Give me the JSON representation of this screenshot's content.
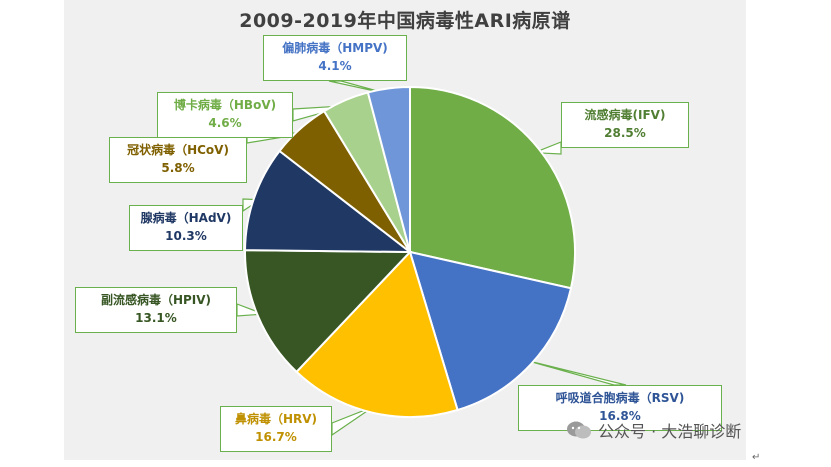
{
  "chart_data": {
    "type": "pie",
    "title": "2009-2019年中国病毒性ARI病原谱",
    "slices": [
      {
        "label": "流感病毒(IFV)",
        "value": 28.5,
        "value_text": "28.5%",
        "color": "#70ad47",
        "text_color": "#507e32"
      },
      {
        "label": "呼吸道合胞病毒（RSV)",
        "value": 16.8,
        "value_text": "16.8%",
        "color": "#4472c4",
        "text_color": "#2f5597"
      },
      {
        "label": "鼻病毒（HRV)",
        "value": 16.7,
        "value_text": "16.7%",
        "color": "#ffc000",
        "text_color": "#bf9000"
      },
      {
        "label": "副流感病毒（HPIV)",
        "value": 13.1,
        "value_text": "13.1%",
        "color": "#375623",
        "text_color": "#375623"
      },
      {
        "label": "腺病毒（HAdV)",
        "value": 10.3,
        "value_text": "10.3%",
        "color": "#203864",
        "text_color": "#203864"
      },
      {
        "label": "冠状病毒（HCoV)",
        "value": 5.8,
        "value_text": "5.8%",
        "color": "#7f6000",
        "text_color": "#7f6000"
      },
      {
        "label": "博卡病毒（HBoV)",
        "value": 4.6,
        "value_text": "4.6%",
        "color": "#a9d18e",
        "text_color": "#70ad47"
      },
      {
        "label": "偏肺病毒（HMPV)",
        "value": 4.1,
        "value_text": "4.1%",
        "color": "#6f96d8",
        "text_color": "#4472c4"
      }
    ]
  },
  "watermark": {
    "text": "公众号 · 大浩聊诊断",
    "icon": "wechat-icon"
  },
  "return_mark": "↵"
}
